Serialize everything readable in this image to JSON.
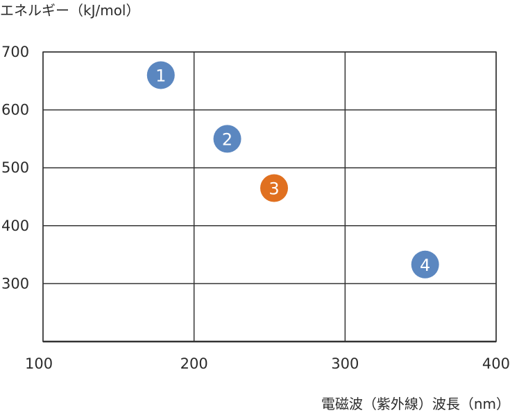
{
  "chart_data": {
    "type": "scatter",
    "title": "",
    "xlabel": "電磁波（紫外線）波長（nm）",
    "ylabel": "エネルギー（kJ/mol）",
    "xlim": [
      100,
      400
    ],
    "ylim": [
      200,
      700
    ],
    "x_ticks": [
      "100",
      "200",
      "300",
      "400"
    ],
    "y_ticks": [
      "700",
      "600",
      "500",
      "400",
      "300"
    ],
    "x_tick_values": [
      100,
      200,
      300,
      400
    ],
    "y_tick_values": [
      700,
      600,
      500,
      400,
      300
    ],
    "grid": true,
    "points": [
      {
        "label": "1",
        "x": 178,
        "y": 660,
        "color": "#5b87c0"
      },
      {
        "label": "2",
        "x": 222,
        "y": 550,
        "color": "#5b87c0"
      },
      {
        "label": "3",
        "x": 253,
        "y": 465,
        "color": "#e07020"
      },
      {
        "label": "4",
        "x": 353,
        "y": 333,
        "color": "#5b87c0"
      }
    ]
  },
  "colors": {
    "grid": "#333333",
    "text": "#2b2b2b",
    "blue_point": "#5b87c0",
    "orange_point": "#e07020"
  }
}
